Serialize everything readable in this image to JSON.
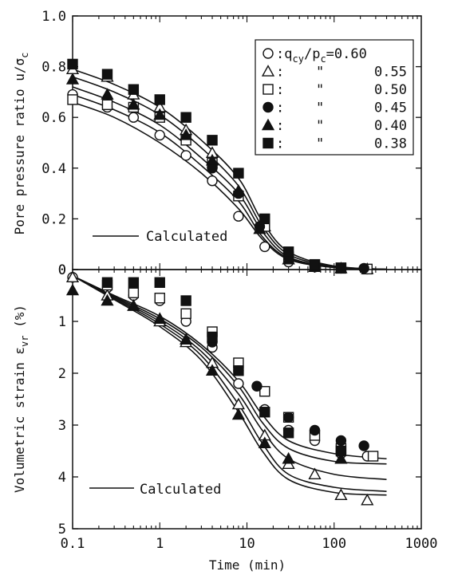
{
  "chart_data": [
    {
      "type": "scatter",
      "title": "",
      "xlabel": "",
      "ylabel": "Pore pressure ratio u/σc",
      "ylabel_parts": {
        "main": "Pore pressure ratio u/σ",
        "sub": "c"
      },
      "xscale": "log",
      "xlim": [
        0.1,
        1000
      ],
      "ylim": [
        0,
        1.0
      ],
      "yticks": [
        0,
        0.2,
        0.4,
        0.6,
        0.8,
        1.0
      ],
      "ytick_labels": [
        "0",
        "0.2",
        "0.4",
        "0.6",
        "0.8",
        "1.0"
      ],
      "grid": false,
      "legend_position": "top-right",
      "legend": {
        "header": "q",
        "header_sub": "cy",
        "header_mid": "/p",
        "header_sub2": "c",
        "header_tail": "=0.60",
        "ditto": "\"",
        "rows": [
          "0.55",
          "0.50",
          "0.45",
          "0.40",
          "0.38"
        ]
      },
      "calc_label": "Calculated",
      "series": [
        {
          "marker": "open-circle",
          "value": "0.60",
          "points": [
            [
              0.1,
              0.69
            ],
            [
              0.25,
              0.64
            ],
            [
              0.5,
              0.6
            ],
            [
              1,
              0.53
            ],
            [
              2,
              0.45
            ],
            [
              4,
              0.35
            ],
            [
              8,
              0.21
            ],
            [
              16,
              0.09
            ],
            [
              30,
              0.03
            ],
            [
              60,
              0.01
            ],
            [
              120,
              0.005
            ],
            [
              240,
              0.002
            ]
          ]
        },
        {
          "marker": "open-triangle",
          "value": "0.55",
          "points": [
            [
              0.1,
              0.79
            ],
            [
              0.25,
              0.76
            ],
            [
              0.5,
              0.69
            ],
            [
              1,
              0.64
            ],
            [
              2,
              0.55
            ],
            [
              4,
              0.46
            ],
            [
              8,
              0.31
            ],
            [
              16,
              0.17
            ],
            [
              30,
              0.04
            ],
            [
              60,
              0.01
            ],
            [
              120,
              0.005
            ],
            [
              240,
              0.002
            ]
          ]
        },
        {
          "marker": "open-square",
          "value": "0.50",
          "points": [
            [
              0.1,
              0.67
            ],
            [
              0.25,
              0.65
            ],
            [
              0.5,
              0.64
            ],
            [
              1,
              0.6
            ],
            [
              2,
              0.51
            ],
            [
              4,
              0.42
            ],
            [
              8,
              0.29
            ],
            [
              16,
              0.17
            ],
            [
              30,
              0.05
            ],
            [
              60,
              0.015
            ],
            [
              120,
              0.005
            ],
            [
              240,
              0.002
            ]
          ]
        },
        {
          "marker": "filled-circle",
          "value": "0.45",
          "points": [
            [
              4,
              0.4
            ],
            [
              8,
              0.3
            ],
            [
              14,
              0.17
            ],
            [
              30,
              0.05
            ],
            [
              60,
              0.015
            ],
            [
              220,
              0.005
            ]
          ]
        },
        {
          "marker": "filled-triangle",
          "value": "0.40",
          "points": [
            [
              0.1,
              0.75
            ],
            [
              0.25,
              0.69
            ],
            [
              0.5,
              0.65
            ],
            [
              1,
              0.61
            ],
            [
              2,
              0.53
            ],
            [
              4,
              0.43
            ],
            [
              8,
              0.31
            ],
            [
              14,
              0.16
            ],
            [
              30,
              0.04
            ],
            [
              60,
              0.01
            ]
          ]
        },
        {
          "marker": "filled-square",
          "value": "0.38",
          "points": [
            [
              0.1,
              0.81
            ],
            [
              0.25,
              0.77
            ],
            [
              0.5,
              0.71
            ],
            [
              1,
              0.67
            ],
            [
              2,
              0.6
            ],
            [
              4,
              0.51
            ],
            [
              8,
              0.38
            ],
            [
              16,
              0.2
            ],
            [
              30,
              0.07
            ],
            [
              60,
              0.02
            ],
            [
              120,
              0.007
            ]
          ]
        }
      ],
      "calculated_curves": [
        [
          [
            0.1,
            0.66
          ],
          [
            0.3,
            0.6
          ],
          [
            1,
            0.5
          ],
          [
            3,
            0.38
          ],
          [
            8,
            0.24
          ],
          [
            15,
            0.12
          ],
          [
            30,
            0.04
          ],
          [
            100,
            0.008
          ],
          [
            400,
            0.001
          ]
        ],
        [
          [
            0.1,
            0.69
          ],
          [
            0.3,
            0.63
          ],
          [
            1,
            0.54
          ],
          [
            3,
            0.41
          ],
          [
            8,
            0.27
          ],
          [
            15,
            0.13
          ],
          [
            30,
            0.045
          ],
          [
            100,
            0.009
          ],
          [
            400,
            0.001
          ]
        ],
        [
          [
            0.1,
            0.72
          ],
          [
            0.3,
            0.66
          ],
          [
            1,
            0.57
          ],
          [
            3,
            0.44
          ],
          [
            8,
            0.3
          ],
          [
            15,
            0.15
          ],
          [
            30,
            0.05
          ],
          [
            100,
            0.01
          ],
          [
            400,
            0.001
          ]
        ],
        [
          [
            0.1,
            0.76
          ],
          [
            0.3,
            0.7
          ],
          [
            1,
            0.61
          ],
          [
            3,
            0.48
          ],
          [
            8,
            0.33
          ],
          [
            15,
            0.17
          ],
          [
            30,
            0.06
          ],
          [
            100,
            0.012
          ],
          [
            400,
            0.001
          ]
        ],
        [
          [
            0.1,
            0.79
          ],
          [
            0.3,
            0.73
          ],
          [
            1,
            0.64
          ],
          [
            3,
            0.51
          ],
          [
            8,
            0.36
          ],
          [
            15,
            0.19
          ],
          [
            30,
            0.07
          ],
          [
            100,
            0.014
          ],
          [
            400,
            0.001
          ]
        ]
      ]
    },
    {
      "type": "scatter",
      "title": "",
      "xlabel": "Time (min)",
      "ylabel": "Volumetric strain εvr (%)",
      "ylabel_parts": {
        "main": "Volumetric strain ε",
        "sub": "vr",
        "tail": " (%)"
      },
      "xscale": "log",
      "xlim": [
        0.1,
        1000
      ],
      "ylim": [
        0,
        5
      ],
      "y_inverted": true,
      "yticks": [
        0,
        1,
        2,
        3,
        4,
        5
      ],
      "ytick_labels": [
        "0",
        "1",
        "2",
        "3",
        "4",
        "5"
      ],
      "xticks": [
        0.1,
        1,
        10,
        100,
        1000
      ],
      "xtick_labels": [
        "0.1",
        "1",
        "10",
        "100",
        "1000"
      ],
      "grid": false,
      "calc_label": "Calculated",
      "series": [
        {
          "marker": "open-circle",
          "value": "0.60",
          "points": [
            [
              0.1,
              0.15
            ],
            [
              0.25,
              0.35
            ],
            [
              0.5,
              0.5
            ],
            [
              1,
              0.6
            ],
            [
              2,
              1.0
            ],
            [
              4,
              1.5
            ],
            [
              8,
              2.2
            ],
            [
              16,
              2.7
            ],
            [
              30,
              3.1
            ],
            [
              60,
              3.3
            ],
            [
              120,
              3.55
            ],
            [
              240,
              3.6
            ]
          ]
        },
        {
          "marker": "open-triangle",
          "value": "0.55",
          "points": [
            [
              0.1,
              0.15
            ],
            [
              0.25,
              0.5
            ],
            [
              0.5,
              0.7
            ],
            [
              1,
              1.0
            ],
            [
              2,
              1.4
            ],
            [
              4,
              1.8
            ],
            [
              8,
              2.6
            ],
            [
              16,
              3.2
            ],
            [
              30,
              3.75
            ],
            [
              60,
              3.95
            ],
            [
              120,
              4.35
            ],
            [
              240,
              4.45
            ]
          ]
        },
        {
          "marker": "open-square",
          "value": "0.50",
          "points": [
            [
              0.25,
              0.3
            ],
            [
              0.5,
              0.45
            ],
            [
              1,
              0.55
            ],
            [
              2,
              0.85
            ],
            [
              4,
              1.2
            ],
            [
              8,
              1.8
            ],
            [
              16,
              2.35
            ],
            [
              30,
              2.85
            ],
            [
              60,
              3.2
            ],
            [
              120,
              3.45
            ],
            [
              280,
              3.6
            ]
          ]
        },
        {
          "marker": "filled-circle",
          "value": "0.45",
          "points": [
            [
              4,
              1.4
            ],
            [
              8,
              1.95
            ],
            [
              13,
              2.25
            ],
            [
              30,
              2.85
            ],
            [
              60,
              3.1
            ],
            [
              120,
              3.3
            ],
            [
              220,
              3.4
            ]
          ]
        },
        {
          "marker": "filled-triangle",
          "value": "0.40",
          "points": [
            [
              0.1,
              0.4
            ],
            [
              0.25,
              0.6
            ],
            [
              0.5,
              0.7
            ],
            [
              1,
              0.95
            ],
            [
              2,
              1.35
            ],
            [
              4,
              1.95
            ],
            [
              8,
              2.8
            ],
            [
              16,
              3.35
            ],
            [
              30,
              3.65
            ],
            [
              120,
              3.65
            ]
          ]
        },
        {
          "marker": "filled-square",
          "value": "0.38",
          "points": [
            [
              0.25,
              0.25
            ],
            [
              0.5,
              0.25
            ],
            [
              1,
              0.25
            ],
            [
              2,
              0.6
            ],
            [
              4,
              1.3
            ],
            [
              8,
              1.95
            ],
            [
              16,
              2.75
            ],
            [
              30,
              3.15
            ],
            [
              120,
              3.5
            ]
          ]
        }
      ],
      "calculated_curves": [
        [
          [
            0.1,
            0.12
          ],
          [
            0.3,
            0.5
          ],
          [
            1,
            0.9
          ],
          [
            3,
            1.45
          ],
          [
            8,
            2.15
          ],
          [
            15,
            2.8
          ],
          [
            30,
            3.3
          ],
          [
            100,
            3.55
          ],
          [
            400,
            3.65
          ]
        ],
        [
          [
            0.1,
            0.12
          ],
          [
            0.3,
            0.52
          ],
          [
            1,
            0.95
          ],
          [
            3,
            1.5
          ],
          [
            8,
            2.25
          ],
          [
            15,
            2.95
          ],
          [
            30,
            3.45
          ],
          [
            100,
            3.7
          ],
          [
            400,
            3.75
          ]
        ],
        [
          [
            0.1,
            0.12
          ],
          [
            0.3,
            0.54
          ],
          [
            1,
            1.0
          ],
          [
            3,
            1.58
          ],
          [
            8,
            2.4
          ],
          [
            15,
            3.1
          ],
          [
            30,
            3.65
          ],
          [
            100,
            3.95
          ],
          [
            400,
            4.05
          ]
        ],
        [
          [
            0.1,
            0.12
          ],
          [
            0.3,
            0.56
          ],
          [
            1,
            1.05
          ],
          [
            3,
            1.66
          ],
          [
            8,
            2.6
          ],
          [
            15,
            3.35
          ],
          [
            30,
            3.95
          ],
          [
            100,
            4.2
          ],
          [
            400,
            4.28
          ]
        ],
        [
          [
            0.1,
            0.12
          ],
          [
            0.3,
            0.58
          ],
          [
            1,
            1.1
          ],
          [
            3,
            1.75
          ],
          [
            8,
            2.75
          ],
          [
            15,
            3.5
          ],
          [
            30,
            4.05
          ],
          [
            100,
            4.3
          ],
          [
            400,
            4.35
          ]
        ]
      ]
    }
  ]
}
